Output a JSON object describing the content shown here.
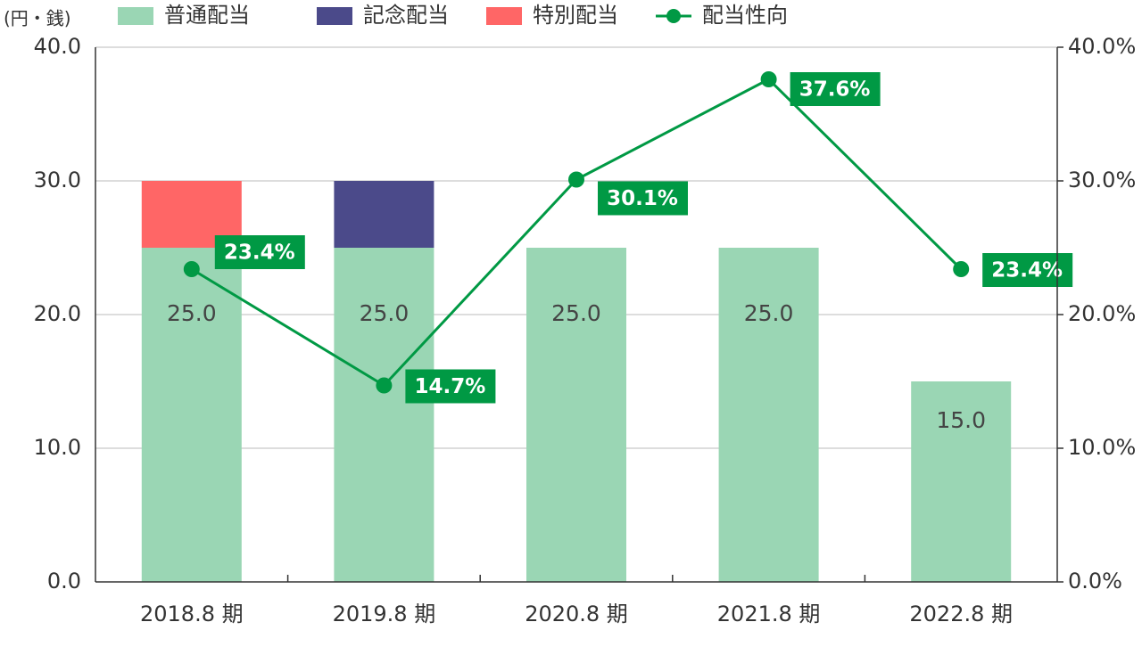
{
  "chart_data": {
    "type": "bar",
    "unit_label": "(円・銭)",
    "categories": [
      "2018.8 期",
      "2019.8 期",
      "2020.8 期",
      "2021.8 期",
      "2022.8 期"
    ],
    "series": [
      {
        "name": "普通配当",
        "color": "#9ad6b4",
        "values": [
          25,
          25,
          25,
          25,
          15
        ],
        "value_labels": [
          "25.0",
          "25.0",
          "25.0",
          "25.0",
          "15.0"
        ]
      },
      {
        "name": "記念配当",
        "color": "#4b4a8a",
        "values": [
          null,
          5,
          null,
          null,
          null
        ]
      },
      {
        "name": "特別配当",
        "color": "#ff6666",
        "values": [
          5,
          null,
          null,
          null,
          null
        ]
      },
      {
        "name": "配当性向",
        "type": "line",
        "axis": "y2",
        "color": "#009944",
        "values": [
          23.4,
          14.7,
          30.1,
          37.6,
          23.4
        ],
        "value_labels": [
          "23.4%",
          "14.7%",
          "30.1%",
          "37.6%",
          "23.4%"
        ]
      }
    ],
    "ylim": [
      0,
      40
    ],
    "yticks": [
      {
        "value": 0,
        "label": "0.0"
      },
      {
        "value": 10,
        "label": "10.0"
      },
      {
        "value": 20,
        "label": "20.0"
      },
      {
        "value": 30,
        "label": "30.0"
      },
      {
        "value": 40,
        "label": "40.0"
      }
    ],
    "y2lim": [
      0,
      40
    ],
    "y2ticks": [
      {
        "value": 0,
        "label": "0.0%"
      },
      {
        "value": 10,
        "label": "10.0%"
      },
      {
        "value": 20,
        "label": "20.0%"
      },
      {
        "value": 30,
        "label": "30.0%"
      },
      {
        "value": 40,
        "label": "40.0%"
      }
    ],
    "grid": true,
    "legend": "top"
  }
}
